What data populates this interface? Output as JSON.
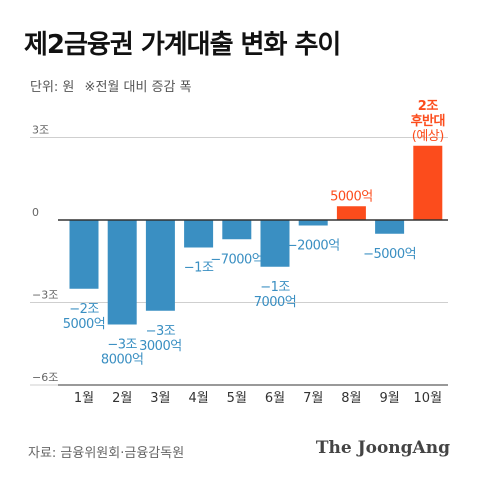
{
  "header": {
    "title": "제2금융권 가계대출 변화 추이",
    "unit": "단위: 원",
    "note": "※전월 대비 증감 폭"
  },
  "footer": {
    "source": "자료: 금융위원회·금융감독원",
    "brand": "The JoongAng"
  },
  "colors": {
    "negative": "#3a8fc2",
    "positive": "#fc4c1c",
    "axis": "#333333",
    "grid": "#cfcfcf"
  },
  "chart_data": {
    "type": "bar",
    "categories": [
      "1월",
      "2월",
      "3월",
      "4월",
      "5월",
      "6월",
      "7월",
      "8월",
      "9월",
      "10월"
    ],
    "values": [
      -2.5,
      -3.8,
      -3.3,
      -1.0,
      -0.7,
      -1.7,
      -0.2,
      0.5,
      -0.5,
      2.7
    ],
    "data_labels": [
      [
        "−2조",
        "5000억"
      ],
      [
        "−3조",
        "8000억"
      ],
      [
        "−3조",
        "3000억"
      ],
      [
        "−1조"
      ],
      [
        "−7000억"
      ],
      [
        "−1조",
        "7000억"
      ],
      [
        "−2000억"
      ],
      [
        "5000억"
      ],
      [
        "−5000억"
      ],
      [
        "2조",
        "후반대",
        "(예상)"
      ]
    ],
    "yticks": [
      3,
      0,
      -3,
      -6
    ],
    "ytick_labels": [
      "3조",
      "0",
      "−3조",
      "−6조"
    ],
    "ylim": [
      -6,
      3
    ],
    "y_unit": "조원",
    "xlabel": "",
    "ylabel": "",
    "grid": true
  }
}
